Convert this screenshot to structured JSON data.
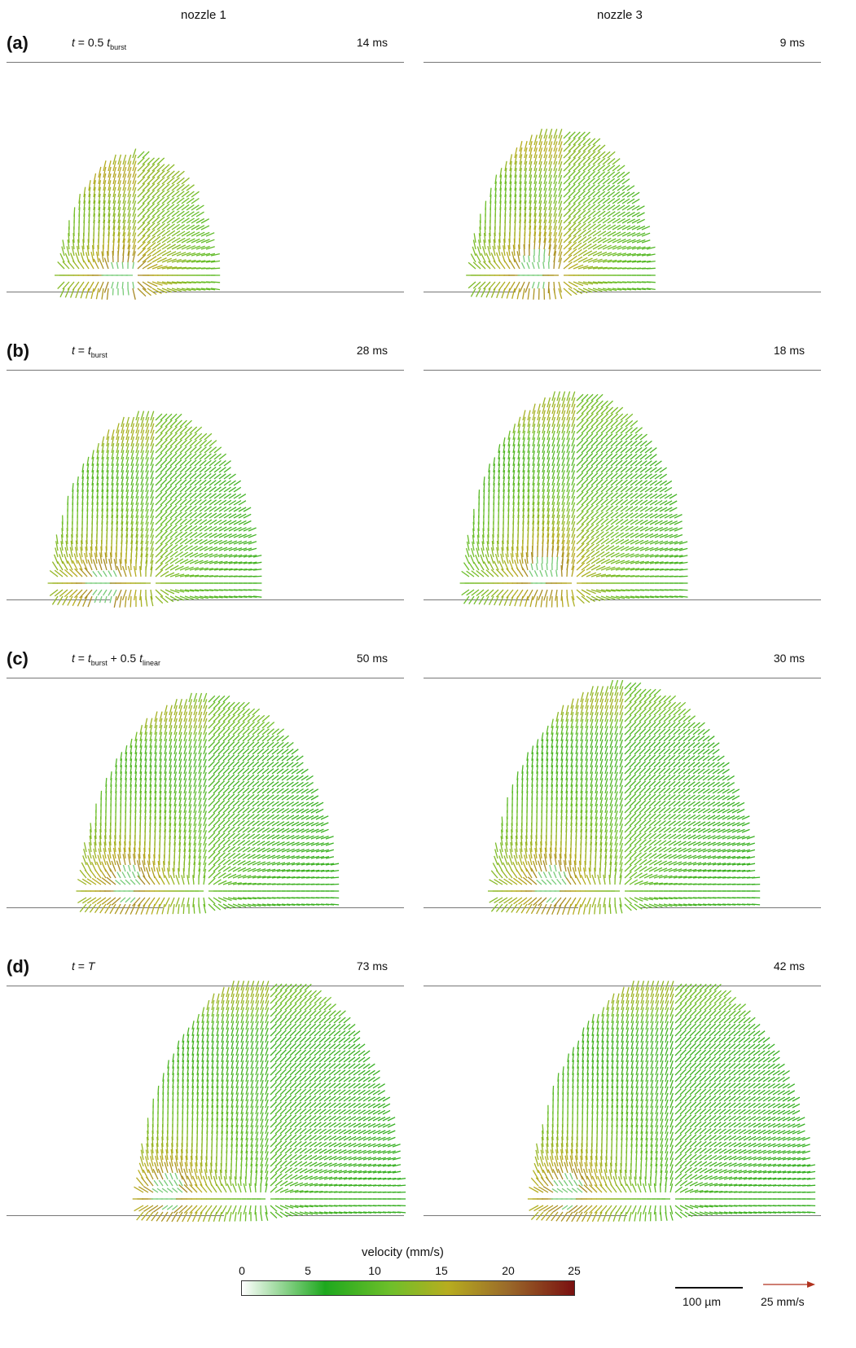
{
  "columns": [
    "nozzle 1",
    "nozzle 3"
  ],
  "rows": [
    {
      "label": "(a)",
      "formula": {
        "parts": [
          {
            "t": "t",
            "it": true
          },
          {
            "t": " = 0.5 "
          },
          {
            "t": "t",
            "it": true
          },
          {
            "sub": "burst"
          }
        ]
      },
      "times": [
        "14 ms",
        "9 ms"
      ]
    },
    {
      "label": "(b)",
      "formula": {
        "parts": [
          {
            "t": "t",
            "it": true
          },
          {
            "t": " = "
          },
          {
            "t": "t",
            "it": true
          },
          {
            "sub": "burst"
          }
        ]
      },
      "times": [
        "28 ms",
        "18 ms"
      ]
    },
    {
      "label": "(c)",
      "formula": {
        "parts": [
          {
            "t": "t",
            "it": true
          },
          {
            "t": " = "
          },
          {
            "t": "t",
            "it": true
          },
          {
            "sub": "burst"
          },
          {
            "t": " + 0.5 "
          },
          {
            "t": "t",
            "it": true
          },
          {
            "sub": "linear"
          }
        ]
      },
      "times": [
        "50 ms",
        "30 ms"
      ]
    },
    {
      "label": "(d)",
      "formula": {
        "parts": [
          {
            "t": "t",
            "it": true
          },
          {
            "t": " = "
          },
          {
            "t": "T",
            "it": true
          }
        ]
      },
      "times": [
        "73 ms",
        "42 ms"
      ]
    }
  ],
  "legend": {
    "title": "velocity (mm/s)",
    "ticks": [
      "0",
      "5",
      "10",
      "15",
      "20",
      "25"
    ],
    "colors": [
      "#ffffff",
      "#1ea81e",
      "#6fbf2a",
      "#b7ad1f",
      "#9a6a2a",
      "#7a1010"
    ],
    "scale_bar_label": "100 µm",
    "reference_arrow_label": "25 mm/s",
    "reference_arrow_color": "#b0321e"
  }
}
